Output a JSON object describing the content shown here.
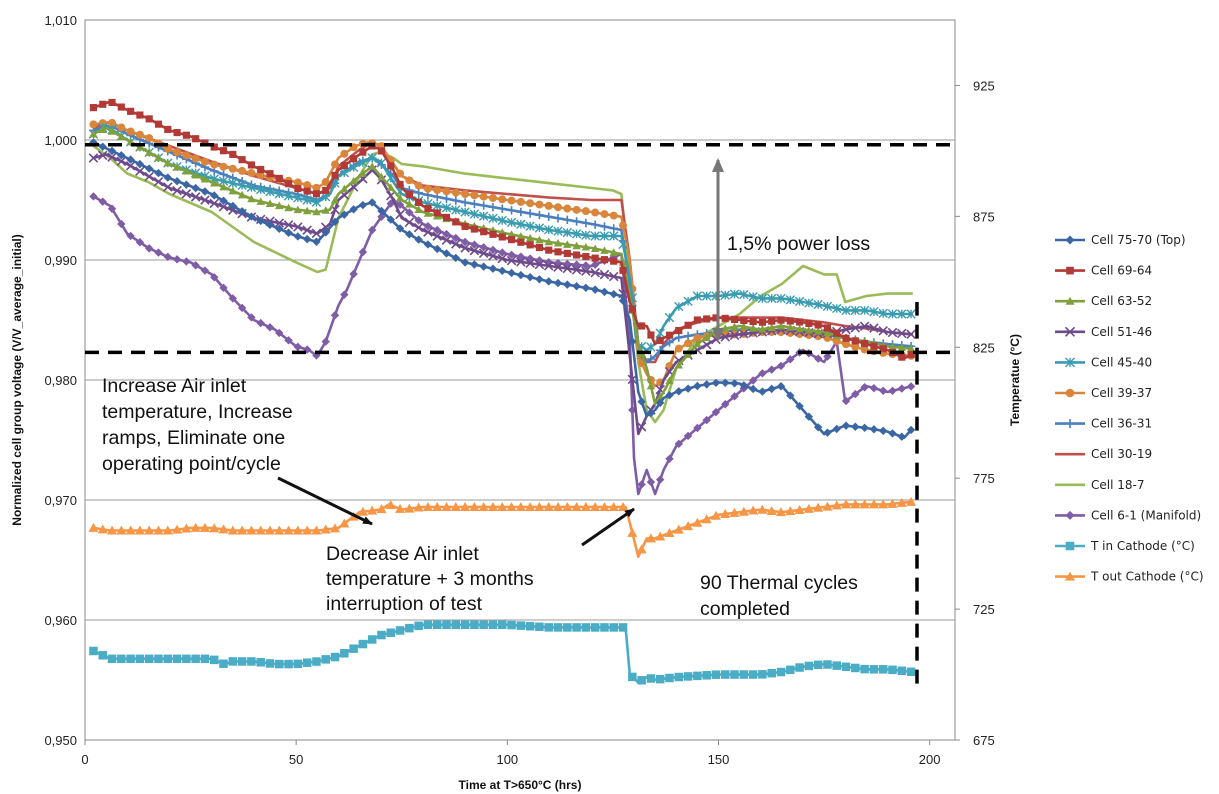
{
  "chart_data": {
    "type": "line",
    "xlabel": "Time at T>650°C (hrs)",
    "ylabel": "Normalized cell group voltage (V/V_average_initial)",
    "y2label": "Temperatue (°C)",
    "xlim": [
      0,
      206
    ],
    "ylim": [
      0.95,
      1.01
    ],
    "y2lim": [
      675,
      950
    ],
    "x_ticks": [
      0,
      50,
      100,
      150,
      200
    ],
    "x_tick_labels": [
      "0",
      "50",
      "100",
      "150",
      "200"
    ],
    "y_ticks": [
      0.95,
      0.96,
      0.97,
      0.98,
      0.99,
      1.0,
      1.01
    ],
    "y_tick_labels": [
      "0,950",
      "0,960",
      "0,970",
      "0,980",
      "0,990",
      "1,000",
      "1,010"
    ],
    "y2_ticks": [
      675,
      725,
      775,
      825,
      875,
      925
    ],
    "y2_tick_labels": [
      "675",
      "725",
      "775",
      "825",
      "875",
      "925"
    ],
    "grid": "horizontal",
    "legend_position": "right",
    "series": [
      {
        "name": "Cell 75-70 (Top)",
        "axis": "left",
        "color": "#3A67A4",
        "marker": "diamond",
        "x": [
          2,
          10,
          20,
          30,
          40,
          50,
          55,
          60,
          65,
          68,
          72,
          75,
          80,
          90,
          100,
          110,
          120,
          127,
          129,
          131,
          133,
          135,
          137,
          140,
          145,
          150,
          155,
          160,
          165,
          170,
          175,
          180,
          185,
          190,
          194,
          196
        ],
        "y": [
          0.9998,
          0.9985,
          0.9968,
          0.9955,
          0.9935,
          0.992,
          0.9915,
          0.9935,
          0.9945,
          0.9948,
          0.9935,
          0.9925,
          0.9915,
          0.9898,
          0.989,
          0.9882,
          0.9876,
          0.987,
          0.985,
          0.979,
          0.977,
          0.9775,
          0.9785,
          0.979,
          0.9795,
          0.9798,
          0.9797,
          0.979,
          0.9795,
          0.9775,
          0.9755,
          0.9762,
          0.976,
          0.9757,
          0.9752,
          0.976
        ]
      },
      {
        "name": "Cell 69-64",
        "axis": "left",
        "color": "#B23A36",
        "marker": "square",
        "x": [
          2,
          6,
          10,
          15,
          20,
          25,
          30,
          35,
          40,
          45,
          50,
          55,
          57,
          60,
          65,
          68,
          70,
          73,
          75,
          80,
          90,
          100,
          110,
          120,
          127,
          129,
          131,
          133,
          135,
          137,
          140,
          145,
          150,
          155,
          160,
          165,
          170,
          175,
          180,
          185,
          190,
          194,
          196
        ],
        "y": [
          1.0027,
          1.0032,
          1.0025,
          1.0018,
          1.0008,
          1.0003,
          0.9995,
          0.9988,
          0.9978,
          0.997,
          0.996,
          0.9955,
          0.9958,
          0.9975,
          0.9988,
          0.9995,
          0.9992,
          0.9975,
          0.996,
          0.9945,
          0.9928,
          0.9918,
          0.9908,
          0.9902,
          0.9898,
          0.9865,
          0.9845,
          0.9845,
          0.983,
          0.9835,
          0.984,
          0.985,
          0.9852,
          0.985,
          0.9848,
          0.985,
          0.9848,
          0.9845,
          0.9835,
          0.983,
          0.9825,
          0.9818,
          0.9822
        ]
      },
      {
        "name": "Cell 63-52",
        "axis": "left",
        "color": "#7FA03C",
        "marker": "triangle",
        "x": [
          2,
          5,
          10,
          20,
          30,
          40,
          50,
          55,
          58,
          60,
          65,
          68,
          70,
          73,
          75,
          80,
          90,
          100,
          110,
          120,
          127,
          129,
          131,
          133,
          135,
          137,
          140,
          145,
          150,
          155,
          160,
          165,
          170,
          175,
          180,
          185,
          190,
          196
        ],
        "y": [
          1.0005,
          1.001,
          1.0,
          0.998,
          0.9965,
          0.995,
          0.9942,
          0.994,
          0.9942,
          0.9955,
          0.997,
          0.9978,
          0.997,
          0.9958,
          0.995,
          0.994,
          0.993,
          0.9922,
          0.9915,
          0.991,
          0.9905,
          0.987,
          0.983,
          0.981,
          0.978,
          0.979,
          0.981,
          0.983,
          0.9842,
          0.9845,
          0.9842,
          0.9845,
          0.9842,
          0.984,
          0.9835,
          0.9832,
          0.9828,
          0.9826
        ]
      },
      {
        "name": "Cell 51-46",
        "axis": "left",
        "color": "#6E4A8C",
        "marker": "x",
        "x": [
          2,
          5,
          10,
          20,
          30,
          40,
          50,
          55,
          58,
          60,
          65,
          68,
          70,
          73,
          75,
          80,
          90,
          100,
          110,
          120,
          127,
          129,
          131,
          133,
          135,
          137,
          140,
          145,
          150,
          155,
          160,
          165,
          170,
          175,
          180,
          185,
          190,
          196
        ],
        "y": [
          0.9985,
          0.9988,
          0.998,
          0.996,
          0.9948,
          0.9935,
          0.9928,
          0.9922,
          0.993,
          0.995,
          0.9965,
          0.9975,
          0.9968,
          0.995,
          0.9935,
          0.9925,
          0.991,
          0.99,
          0.9895,
          0.989,
          0.9885,
          0.982,
          0.9755,
          0.977,
          0.978,
          0.98,
          0.9815,
          0.9825,
          0.9835,
          0.9838,
          0.984,
          0.9842,
          0.984,
          0.9838,
          0.9842,
          0.9845,
          0.984,
          0.9838
        ]
      },
      {
        "name": "Cell 45-40",
        "axis": "left",
        "color": "#3A9CB0",
        "marker": "star",
        "x": [
          2,
          5,
          10,
          20,
          30,
          40,
          50,
          55,
          58,
          60,
          65,
          68,
          70,
          73,
          75,
          80,
          90,
          100,
          110,
          120,
          127,
          129,
          131,
          133,
          135,
          137,
          140,
          145,
          150,
          155,
          160,
          165,
          170,
          175,
          180,
          185,
          190,
          196
        ],
        "y": [
          1.0005,
          1.0012,
          1.0,
          0.998,
          0.9968,
          0.996,
          0.9952,
          0.9948,
          0.9955,
          0.997,
          0.998,
          0.9985,
          0.9982,
          0.9965,
          0.9955,
          0.9948,
          0.994,
          0.9932,
          0.9925,
          0.992,
          0.992,
          0.9885,
          0.983,
          0.9825,
          0.983,
          0.9845,
          0.986,
          0.987,
          0.987,
          0.9872,
          0.9868,
          0.9868,
          0.9865,
          0.9862,
          0.9858,
          0.9858,
          0.9855,
          0.9855
        ]
      },
      {
        "name": "Cell 39-37",
        "axis": "left",
        "color": "#D9853B",
        "marker": "circle",
        "x": [
          2,
          6,
          10,
          15,
          20,
          30,
          40,
          45,
          50,
          55,
          57,
          60,
          64,
          67,
          70,
          73,
          75,
          80,
          90,
          100,
          110,
          120,
          127,
          129,
          131,
          133,
          135,
          137,
          140,
          145,
          150,
          155,
          160,
          165,
          170,
          175,
          180,
          185,
          190,
          196
        ],
        "y": [
          1.0013,
          1.0015,
          1.0008,
          1.0002,
          0.9992,
          0.998,
          0.9972,
          0.9968,
          0.9965,
          0.996,
          0.9965,
          0.9985,
          0.9995,
          0.9998,
          0.9996,
          0.998,
          0.997,
          0.996,
          0.9955,
          0.995,
          0.9945,
          0.994,
          0.9936,
          0.99,
          0.982,
          0.9805,
          0.9795,
          0.98,
          0.9825,
          0.9835,
          0.9838,
          0.9838,
          0.984,
          0.984,
          0.9838,
          0.9836,
          0.983,
          0.9825,
          0.9822,
          0.982
        ]
      },
      {
        "name": "Cell 36-31",
        "axis": "left",
        "color": "#4A7FC0",
        "marker": "plus",
        "x": [
          2,
          6,
          10,
          20,
          30,
          40,
          50,
          55,
          58,
          60,
          65,
          68,
          70,
          73,
          75,
          80,
          90,
          100,
          110,
          120,
          127,
          129,
          131,
          133,
          135,
          137,
          140,
          145,
          150,
          155,
          160,
          165,
          170,
          175,
          180,
          185,
          190,
          196
        ],
        "y": [
          1.0008,
          1.0012,
          1.0005,
          0.999,
          0.9975,
          0.9962,
          0.9955,
          0.995,
          0.9955,
          0.997,
          0.9982,
          0.9985,
          0.998,
          0.997,
          0.996,
          0.9955,
          0.9948,
          0.9942,
          0.9936,
          0.993,
          0.9925,
          0.988,
          0.982,
          0.9815,
          0.982,
          0.9828,
          0.9835,
          0.9838,
          0.984,
          0.9842,
          0.9842,
          0.984,
          0.984,
          0.9838,
          0.9835,
          0.9832,
          0.983,
          0.9828
        ]
      },
      {
        "name": "Cell 30-19",
        "axis": "left",
        "color": "#C0504D",
        "marker": "none",
        "x": [
          2,
          6,
          10,
          20,
          30,
          40,
          50,
          55,
          58,
          60,
          65,
          68,
          70,
          73,
          75,
          80,
          90,
          100,
          110,
          120,
          127,
          129,
          131,
          133,
          135,
          137,
          140,
          145,
          150,
          155,
          160,
          165,
          170,
          175,
          180,
          185,
          190,
          196
        ],
        "y": [
          1.001,
          1.0015,
          1.0008,
          0.9995,
          0.9982,
          0.997,
          0.996,
          0.9955,
          0.996,
          0.9978,
          0.9992,
          0.9998,
          0.9995,
          0.998,
          0.997,
          0.9962,
          0.9958,
          0.9955,
          0.9952,
          0.995,
          0.995,
          0.99,
          0.983,
          0.9815,
          0.9815,
          0.983,
          0.9842,
          0.9848,
          0.9852,
          0.9852,
          0.9852,
          0.9852,
          0.985,
          0.9848,
          0.9845,
          0.9843,
          0.984,
          0.9838
        ]
      },
      {
        "name": "Cell 18-7",
        "axis": "left",
        "color": "#9BBB59",
        "marker": "none",
        "x": [
          2,
          6,
          10,
          15,
          20,
          30,
          40,
          50,
          55,
          57,
          60,
          65,
          68,
          70,
          73,
          75,
          80,
          90,
          100,
          110,
          120,
          125,
          127,
          129,
          131,
          133,
          135,
          137,
          140,
          145,
          150,
          155,
          160,
          165,
          170,
          175,
          178,
          180,
          185,
          190,
          196
        ],
        "y": [
          0.9995,
          0.9985,
          0.9972,
          0.9965,
          0.9955,
          0.994,
          0.9915,
          0.9898,
          0.989,
          0.9892,
          0.9935,
          0.997,
          0.9988,
          0.999,
          0.9985,
          0.998,
          0.9978,
          0.9972,
          0.9968,
          0.9964,
          0.996,
          0.9958,
          0.9955,
          0.9885,
          0.9815,
          0.9775,
          0.9765,
          0.9775,
          0.981,
          0.9835,
          0.9845,
          0.9855,
          0.987,
          0.988,
          0.9895,
          0.9888,
          0.9888,
          0.9865,
          0.987,
          0.9872,
          0.9872
        ]
      },
      {
        "name": "Cell 6-1 (Manifold)",
        "axis": "left",
        "color": "#7F5CA6",
        "marker": "diamond",
        "x": [
          2,
          6,
          10,
          15,
          20,
          25,
          30,
          35,
          40,
          45,
          50,
          53,
          55,
          57,
          60,
          62,
          65,
          68,
          70,
          73,
          75,
          80,
          90,
          100,
          110,
          120,
          127,
          129,
          130,
          131,
          133,
          135,
          137,
          140,
          145,
          150,
          155,
          160,
          165,
          170,
          175,
          178,
          180,
          185,
          190,
          196
        ],
        "y": [
          0.9953,
          0.9945,
          0.9922,
          0.991,
          0.9902,
          0.9898,
          0.9888,
          0.9868,
          0.985,
          0.9842,
          0.9828,
          0.9825,
          0.982,
          0.9832,
          0.9862,
          0.9875,
          0.99,
          0.9925,
          0.9935,
          0.995,
          0.9945,
          0.993,
          0.9915,
          0.9905,
          0.9898,
          0.9895,
          0.9905,
          0.9835,
          0.9735,
          0.9705,
          0.9725,
          0.9705,
          0.9725,
          0.9745,
          0.976,
          0.9775,
          0.979,
          0.9805,
          0.9812,
          0.9825,
          0.9815,
          0.9832,
          0.9782,
          0.9795,
          0.979,
          0.9795
        ]
      },
      {
        "name": "T in Cathode (°C)",
        "axis": "right",
        "color": "#4BACC6",
        "marker": "square",
        "x": [
          2,
          6,
          10,
          15,
          20,
          25,
          30,
          33,
          35,
          40,
          45,
          50,
          55,
          60,
          65,
          70,
          75,
          80,
          90,
          100,
          110,
          120,
          125,
          128,
          129,
          131,
          133,
          135,
          140,
          150,
          160,
          165,
          170,
          175,
          180,
          185,
          190,
          196
        ],
        "y": [
          709,
          706,
          706,
          706,
          706,
          706,
          706,
          704,
          705,
          705,
          704,
          704,
          705,
          707,
          711,
          715,
          717,
          719,
          719,
          719,
          718,
          718,
          718,
          718,
          700,
          697,
          699,
          698,
          699,
          700,
          700,
          701,
          703,
          704,
          703,
          702,
          702,
          701
        ]
      },
      {
        "name": "T out Cathode (°C)",
        "axis": "right",
        "color": "#F79646",
        "marker": "triangle",
        "x": [
          2,
          6,
          10,
          15,
          20,
          25,
          30,
          35,
          40,
          45,
          50,
          55,
          60,
          65,
          70,
          72,
          75,
          80,
          90,
          100,
          110,
          120,
          125,
          128,
          129,
          131,
          133,
          135,
          140,
          150,
          160,
          165,
          170,
          175,
          180,
          185,
          190,
          196
        ],
        "y": [
          756,
          755,
          755,
          755,
          755,
          756,
          756,
          755,
          755,
          755,
          755,
          755,
          756,
          762,
          763,
          765,
          763,
          764,
          764,
          764,
          764,
          764,
          764,
          764,
          758,
          745,
          752,
          752,
          755,
          761,
          763,
          762,
          763,
          764,
          765,
          765,
          765,
          766
        ]
      }
    ],
    "reference_lines": [
      {
        "type": "horizontal-dashed",
        "axis": "left",
        "y": 0.9996
      },
      {
        "type": "horizontal-dashed",
        "axis": "left",
        "y": 0.9823
      },
      {
        "type": "vertical-dashed",
        "x": 197,
        "from": 0.9547,
        "to": 0.9865
      }
    ],
    "annotations": [
      {
        "lines": [
          "1,5% power loss"
        ]
      },
      {
        "lines": [
          "Increase Air inlet",
          "temperature, Increase",
          "ramps, Eliminate one",
          "operating point/cycle"
        ]
      },
      {
        "lines": [
          "Decrease Air inlet",
          "temperature + 3 months",
          "interruption of test"
        ]
      },
      {
        "lines": [
          "90 Thermal cycles",
          "completed"
        ]
      }
    ]
  }
}
